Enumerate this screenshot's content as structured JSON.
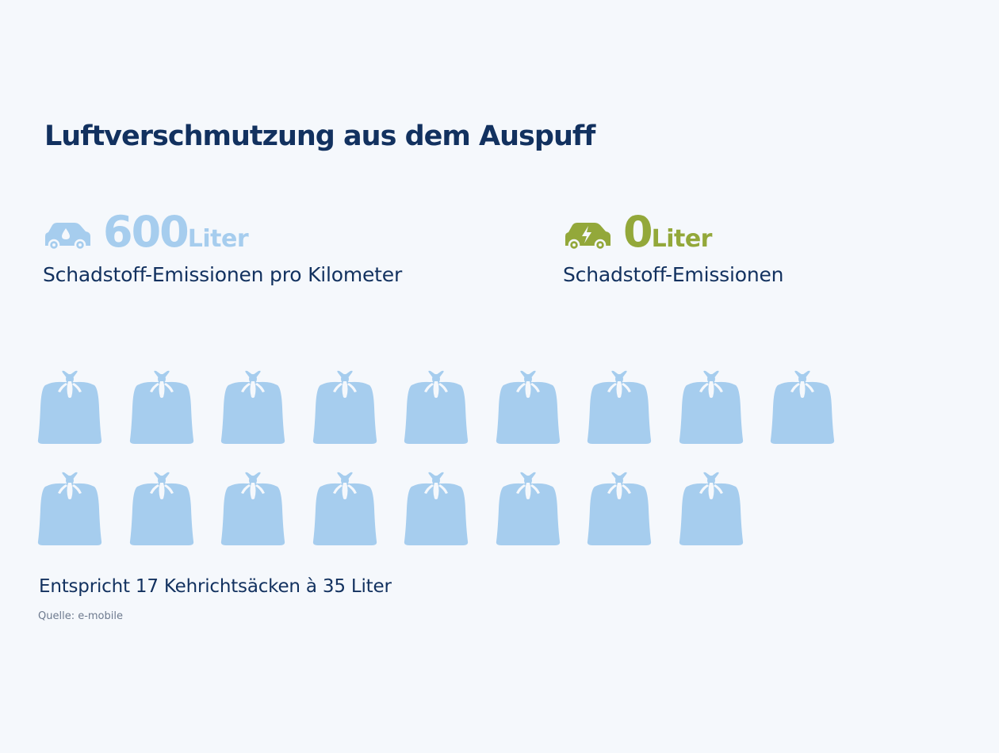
{
  "title": "Luftverschmutzung aus dem Auspuff",
  "combustion": {
    "icon": "fuel-car-icon",
    "value": "600",
    "unit": "Liter",
    "description": "Schadstoff-Emissionen pro Kilometer",
    "color": "#a6cdee"
  },
  "electric": {
    "icon": "electric-car-icon",
    "value": "0",
    "unit": "Liter",
    "description": "Schadstoff-Emissionen",
    "color": "#93a83a"
  },
  "bags": {
    "count": 17,
    "icon": "garbage-bag-icon",
    "color": "#a6cdee"
  },
  "equivalent_text": "Entspricht 17 Kehrichtsäcken à 35 Liter",
  "source": "Quelle: e-mobile"
}
